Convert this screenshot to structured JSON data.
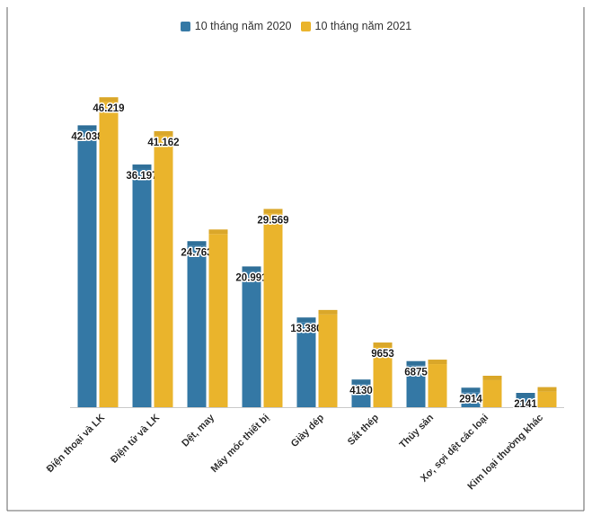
{
  "chart_data": {
    "type": "bar",
    "categories": [
      "Điện thoại và LK",
      "Điện tử và LK",
      "Dệt, may",
      "Máy móc thiết bị",
      "Giày dép",
      "Sắt thép",
      "Thủy sản",
      "Xơ, sợi dệt các loại",
      "Kim loại thường khác"
    ],
    "series": [
      {
        "name": "10 tháng năm 2020",
        "color": "#3478a5",
        "values": [
          42038,
          36197,
          24763,
          20991,
          13380,
          4130,
          6875,
          2914,
          2141
        ],
        "labels": [
          "42.038",
          "36.197",
          "24.763",
          "20.991",
          "13.380",
          "4130",
          "6875",
          "2914",
          "2141"
        ]
      },
      {
        "name": "10 tháng năm 2021",
        "color": "#eab42c",
        "values": [
          46219,
          41162,
          26500,
          29569,
          14500,
          9653,
          7100,
          4700,
          3000
        ],
        "labels": [
          "46.219",
          "41.162",
          "",
          "29.569",
          "",
          "9653",
          "",
          "",
          ""
        ]
      }
    ],
    "ylim": [
      0,
      50000
    ],
    "grid": false,
    "legend_position": "top-center"
  }
}
